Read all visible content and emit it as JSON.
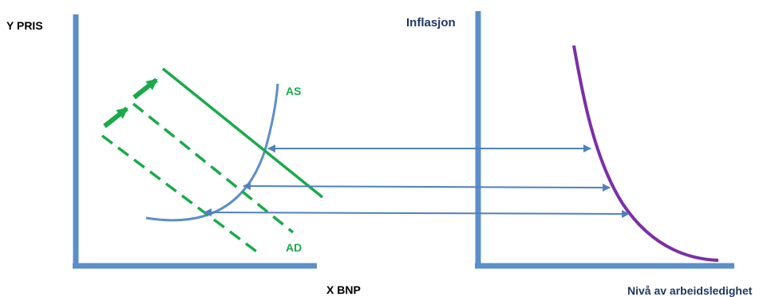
{
  "left_panel": {
    "y_axis_label": "Y PRIS",
    "x_axis_label": "X BNP",
    "curve_labels": {
      "as": "AS",
      "ad": "AD"
    }
  },
  "right_panel": {
    "y_axis_label": "Inflasjon",
    "x_axis_label": "Nivå av arbeidsledighet"
  },
  "colors": {
    "axis": "#5b8fc9",
    "as_curve": "#5b8fc9",
    "ad_lines": "#1aaa4a",
    "phillips_curve": "#7b2fa8",
    "connector_arrows": "#4f81bd",
    "right_title": "#1f3864",
    "text": "#000000"
  }
}
